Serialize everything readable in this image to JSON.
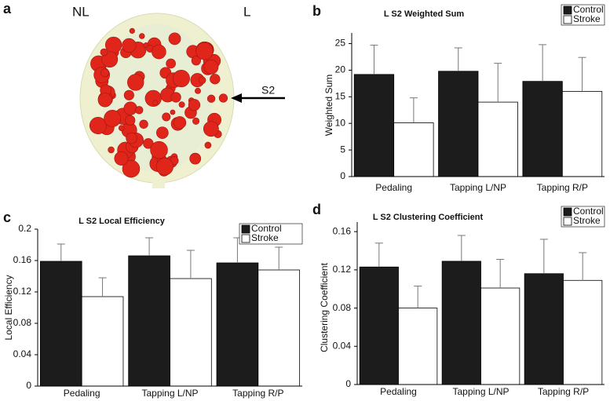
{
  "image": {
    "panel_label": "a",
    "left_label": "NL",
    "right_label": "L",
    "annotation": "S2"
  },
  "chart_data": [
    {
      "type": "bar",
      "panel_label": "b",
      "title": "L S2 Weighted Sum",
      "y_label": "Weighted Sum",
      "categories": [
        "Pedaling",
        "Tapping L/NP",
        "Tapping R/P"
      ],
      "series": [
        {
          "name": "Control",
          "color": "#1c1c1c",
          "values": [
            19.2,
            19.8,
            17.9
          ],
          "errors": [
            5.5,
            4.4,
            6.9
          ]
        },
        {
          "name": "Stroke",
          "color": "#ffffff",
          "values": [
            10.1,
            14.0,
            16.0
          ],
          "errors": [
            4.7,
            7.3,
            6.4
          ]
        }
      ],
      "ylim": [
        0,
        27
      ],
      "yticks": [
        0,
        5,
        10,
        15,
        20,
        25
      ],
      "legend": "top-right"
    },
    {
      "type": "bar",
      "panel_label": "c",
      "title": "L S2 Local Efficiency",
      "y_label": "Local Efficiency",
      "categories": [
        "Pedaling",
        "Tapping L/NP",
        "Tapping R/P"
      ],
      "series": [
        {
          "name": "Control",
          "color": "#1c1c1c",
          "values": [
            0.159,
            0.166,
            0.157
          ],
          "errors": [
            0.022,
            0.023,
            0.032
          ]
        },
        {
          "name": "Stroke",
          "color": "#ffffff",
          "values": [
            0.114,
            0.137,
            0.148
          ],
          "errors": [
            0.024,
            0.036,
            0.029
          ]
        }
      ],
      "ylim": [
        0,
        0.2
      ],
      "yticks": [
        0,
        0.04,
        0.08,
        0.12,
        0.16,
        0.2
      ],
      "legend": "top-right"
    },
    {
      "type": "bar",
      "panel_label": "d",
      "title": "L S2 Clustering Coefficient",
      "y_label": "Clustering Coefficient",
      "categories": [
        "Pedaling",
        "Tapping L/NP",
        "Tapping R/P"
      ],
      "series": [
        {
          "name": "Control",
          "color": "#1c1c1c",
          "values": [
            0.123,
            0.129,
            0.116
          ],
          "errors": [
            0.025,
            0.027,
            0.036
          ]
        },
        {
          "name": "Stroke",
          "color": "#ffffff",
          "values": [
            0.08,
            0.101,
            0.109
          ],
          "errors": [
            0.023,
            0.03,
            0.029
          ]
        }
      ],
      "ylim": [
        0,
        0.17
      ],
      "yticks": [
        0,
        0.04,
        0.08,
        0.12,
        0.16
      ],
      "legend": "top-right"
    }
  ]
}
